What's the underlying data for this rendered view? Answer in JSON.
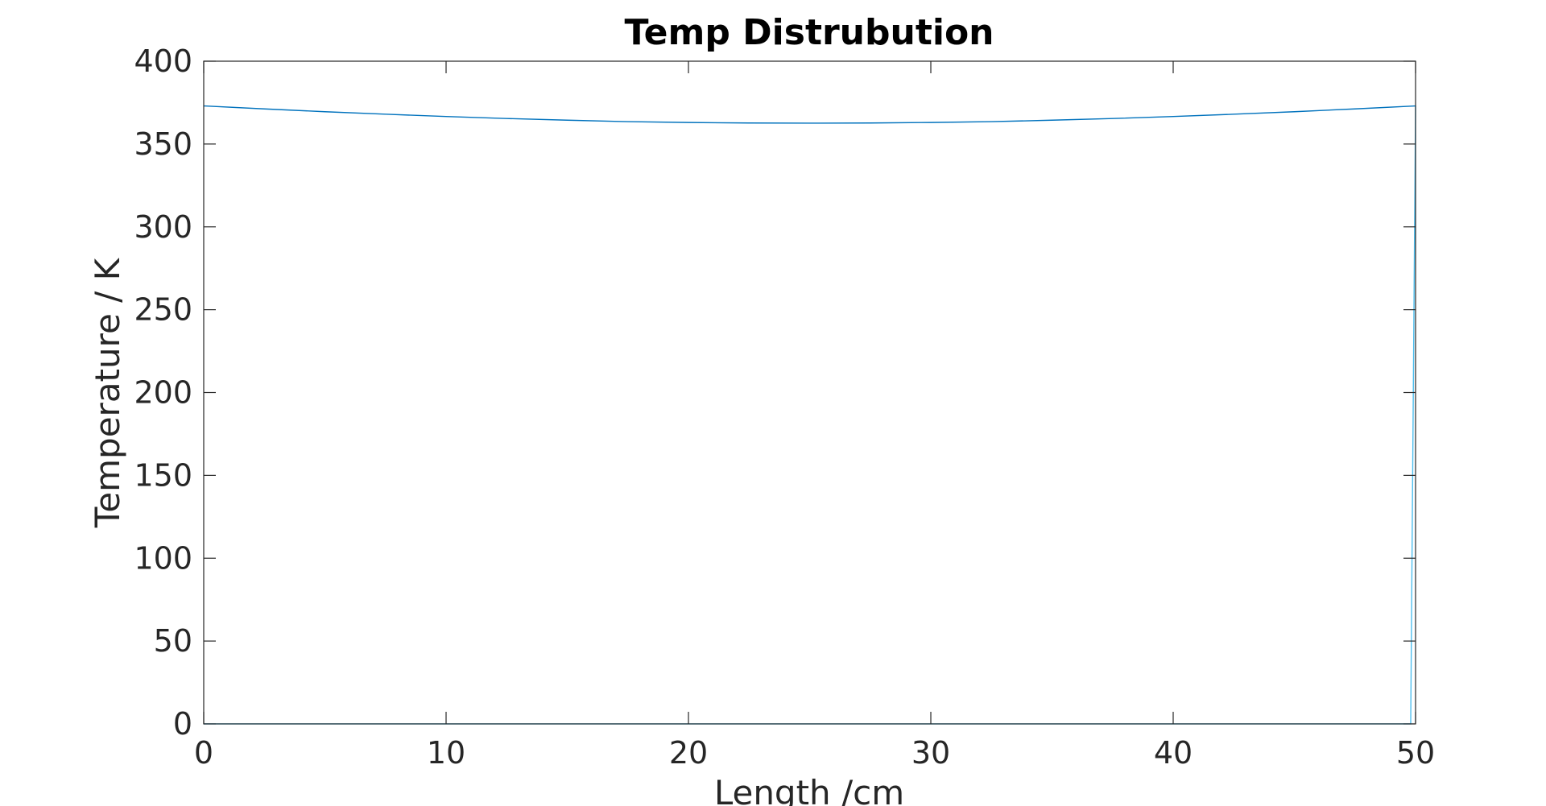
{
  "chart_data": {
    "type": "line",
    "title": "Temp Distrubution",
    "xlabel": "Length /cm",
    "ylabel": "Temperature / K",
    "xlim": [
      0,
      50
    ],
    "ylim": [
      0,
      400
    ],
    "xticks": [
      0,
      10,
      20,
      30,
      40,
      50
    ],
    "yticks": [
      0,
      50,
      100,
      150,
      200,
      250,
      300,
      350,
      400
    ],
    "grid": false,
    "series": [
      {
        "color": "#0072BD",
        "x": [
          0,
          2.5,
          5,
          7.5,
          10,
          12.5,
          15,
          17.5,
          20,
          22.5,
          25,
          27.5,
          30,
          32.5,
          35,
          37.5,
          40,
          42.5,
          45,
          47.5,
          50
        ],
        "values": [
          373,
          371.2,
          369.5,
          368,
          366.6,
          365.4,
          364.4,
          363.5,
          363,
          362.7,
          362.6,
          362.7,
          363,
          363.5,
          364.4,
          365.4,
          366.6,
          368,
          369.5,
          371.2,
          373
        ]
      },
      {
        "color": "#4DBEEE",
        "x": [
          0,
          49.8,
          50
        ],
        "values": [
          0,
          0,
          373
        ]
      }
    ]
  }
}
